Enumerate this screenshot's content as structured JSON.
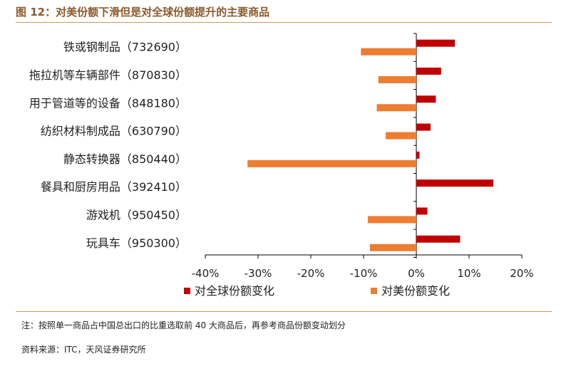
{
  "figure": {
    "title": "图 12：对美份额下滑但是对全球份额提升的主要商品",
    "note": "注：按照单一商品占中国总出口的比重选取前 40 大商品后，再参考商品份额变动划分",
    "source": "资料来源：ITC，天风证券研究所"
  },
  "chart_data": {
    "type": "bar",
    "orientation": "horizontal",
    "categories": [
      "铁或钢制品（732690）",
      "拖拉机等车辆部件（870830）",
      "用于管道等的设备（848180）",
      "纺织材料制成品（630790）",
      "静态转换器（850440）",
      "餐具和厨房用品（392410）",
      "游戏机（950450）",
      "玩具车（950300）"
    ],
    "series": [
      {
        "name": "对全球份额变化",
        "color": "#c00000",
        "values": [
          7.3,
          4.7,
          3.7,
          2.7,
          0.6,
          14.6,
          2.1,
          8.3
        ]
      },
      {
        "name": "对美份额变化",
        "color": "#ed7d31",
        "values": [
          -10.5,
          -7.2,
          -7.5,
          -5.8,
          -32.0,
          0,
          -9.2,
          -8.8
        ]
      }
    ],
    "xlim": [
      -40,
      20
    ],
    "ticks": [
      -40,
      -30,
      -20,
      -10,
      0,
      10,
      20
    ],
    "tick_labels": [
      "-40%",
      "-30%",
      "-20%",
      "-10%",
      "0%",
      "10%",
      "20%"
    ],
    "legend_position": "bottom"
  }
}
